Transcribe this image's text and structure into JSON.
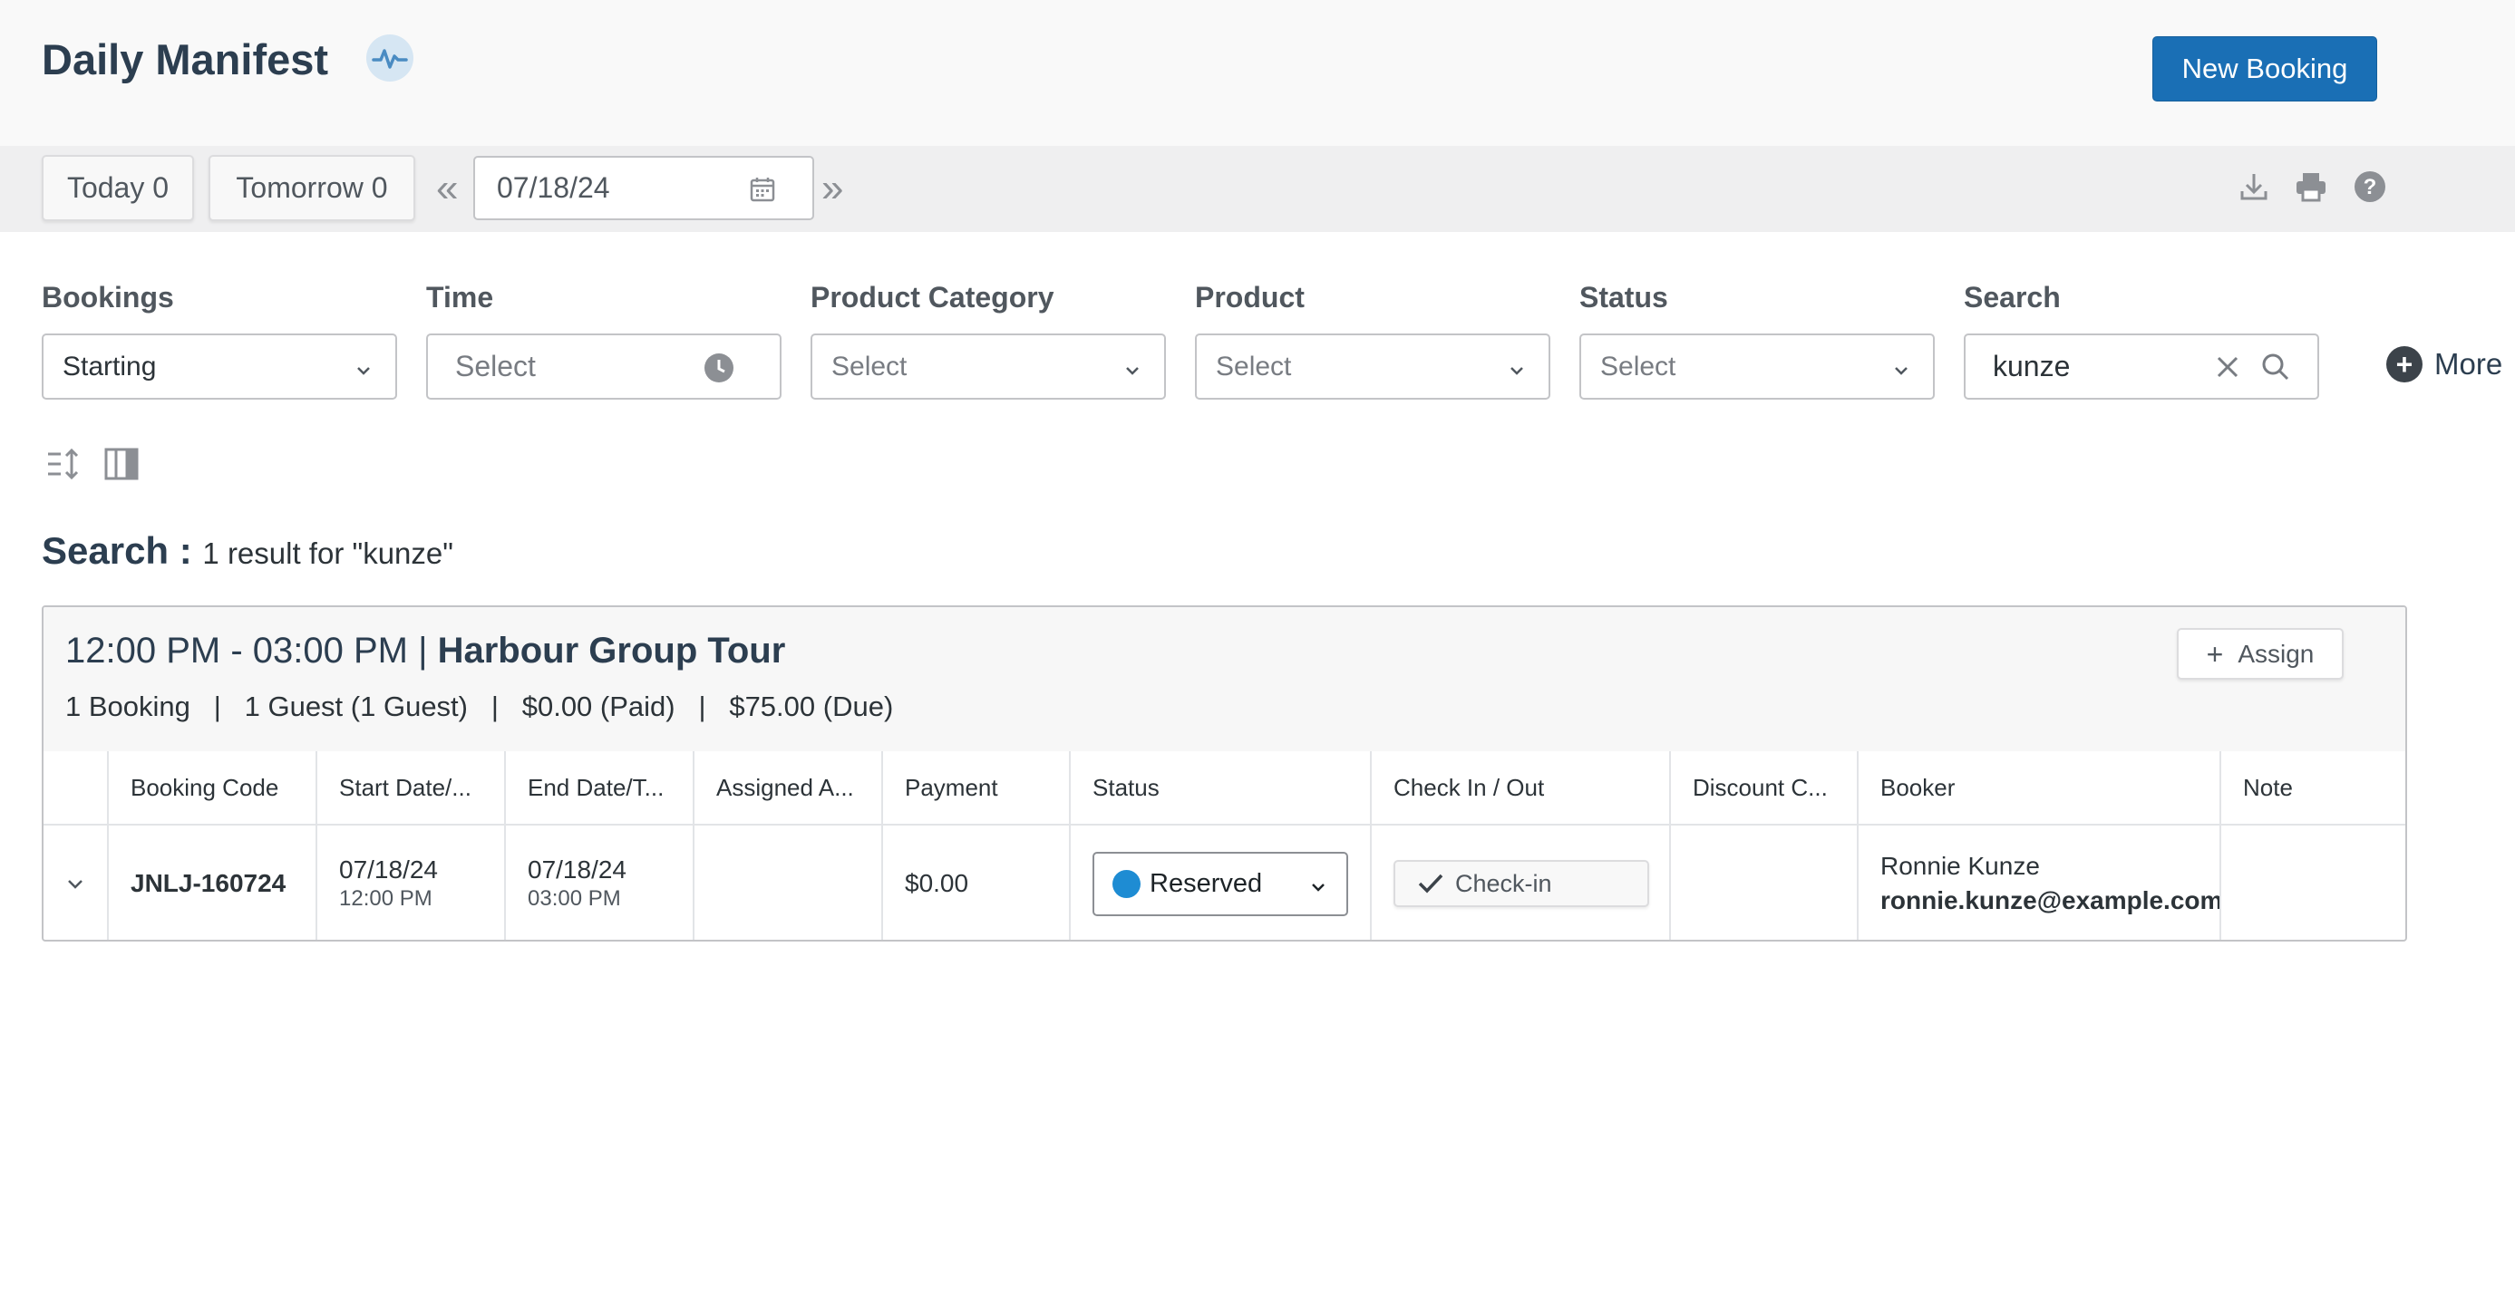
{
  "header": {
    "title": "Daily Manifest",
    "new_booking_label": "New Booking"
  },
  "datebar": {
    "today_label": "Today 0",
    "tomorrow_label": "Tomorrow 0",
    "prev_glyph": "«",
    "next_glyph": "»",
    "date_value": "07/18/24"
  },
  "filters": {
    "bookings": {
      "label": "Bookings",
      "value": "Starting"
    },
    "time": {
      "label": "Time",
      "placeholder": "Select"
    },
    "product_category": {
      "label": "Product Category",
      "placeholder": "Select"
    },
    "product": {
      "label": "Product",
      "placeholder": "Select"
    },
    "status": {
      "label": "Status",
      "placeholder": "Select"
    },
    "search": {
      "label": "Search",
      "value": "kunze"
    },
    "more_label": "More"
  },
  "results": {
    "heading": "Search :",
    "summary": "1 result for \"kunze\""
  },
  "group": {
    "time_range": "12:00 PM - 03:00 PM | ",
    "tour_name": "Harbour Group Tour",
    "summary": "1 Booking   |   1 Guest (1 Guest)   |   $0.00 (Paid)   |   $75.00 (Due)",
    "assign_label": "Assign"
  },
  "table": {
    "columns": [
      "Booking Code",
      "Start Date/...",
      "End Date/T...",
      "Assigned A...",
      "Payment",
      "Status",
      "Check In / Out",
      "Discount C...",
      "Booker",
      "Note"
    ],
    "rows": [
      {
        "booking_code": "JNLJ-160724",
        "start_date": "07/18/24",
        "start_time": "12:00 PM",
        "end_date": "07/18/24",
        "end_time": "03:00 PM",
        "assigned": "",
        "payment": "$0.00",
        "status": "Reserved",
        "check_in_label": "Check-in",
        "discount": "",
        "booker_name": "Ronnie Kunze",
        "booker_email": "ronnie.kunze@example.com",
        "note": ""
      }
    ]
  },
  "colors": {
    "primary": "#1a6fb5",
    "status_reserved": "#1e8cd3",
    "heading": "#2c3e50"
  },
  "icons": [
    "activity-icon",
    "calendar-icon",
    "download-icon",
    "print-icon",
    "help-icon",
    "clock-icon",
    "chevron-down-icon",
    "clear-icon",
    "search-icon",
    "plus-icon",
    "sort-icon",
    "columns-icon",
    "check-icon"
  ]
}
